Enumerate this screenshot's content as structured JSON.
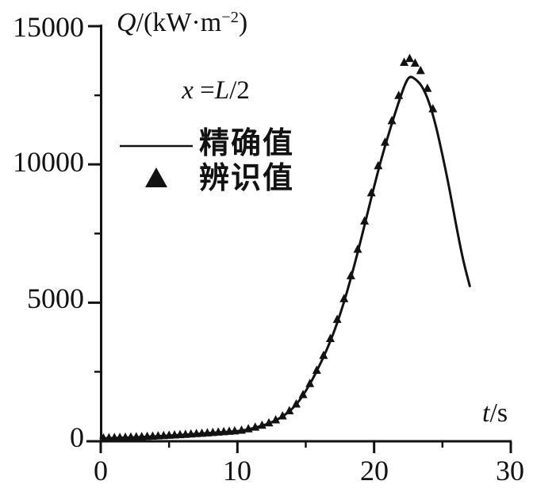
{
  "figure": {
    "background": "#ffffff",
    "ink": "#121212",
    "y_axis": {
      "title_var": "Q",
      "title_unit_pre": "/(kW·m",
      "title_unit_sup": "−2",
      "title_unit_post": ")",
      "tick_labels": [
        "0",
        "5000",
        "10000",
        "15000"
      ],
      "ticks": [
        0,
        5000,
        10000,
        15000
      ],
      "minor_ticks": [
        2500,
        7500,
        12500
      ],
      "range": [
        0,
        15000
      ]
    },
    "x_axis": {
      "title_var": "t",
      "title_unit": "/s",
      "tick_labels": [
        "0",
        "10",
        "20",
        "30"
      ],
      "ticks": [
        0,
        10,
        20,
        30
      ],
      "minor_ticks": [
        5,
        15,
        25
      ],
      "range": [
        0,
        30
      ]
    },
    "annotation": {
      "var1": "x",
      "eq": " =",
      "var2": "L",
      "rest": "/2"
    },
    "legend": [
      {
        "swatch": "solid-line",
        "label": "精确值"
      },
      {
        "swatch": "filled-triangle",
        "label": "辨识值"
      }
    ]
  },
  "chart_data": {
    "type": "line",
    "title": "",
    "xlabel": "t/s",
    "ylabel": "Q/(kW·m−2)",
    "annotation": "x =L/2",
    "xlim": [
      0,
      30
    ],
    "ylim": [
      0,
      15000
    ],
    "x_major_ticks": [
      0,
      10,
      20,
      30
    ],
    "x_minor_ticks": [
      5,
      15,
      25
    ],
    "y_major_ticks": [
      0,
      5000,
      10000,
      15000
    ],
    "y_minor_ticks": [
      2500,
      7500,
      12500
    ],
    "grid": false,
    "legend_position": "upper-left-inside",
    "series": [
      {
        "name": "精确值",
        "kind": "line",
        "color": "#121212",
        "points": [
          [
            0,
            90
          ],
          [
            1,
            105
          ],
          [
            2,
            120
          ],
          [
            3,
            140
          ],
          [
            4,
            165
          ],
          [
            5,
            190
          ],
          [
            6,
            220
          ],
          [
            7,
            250
          ],
          [
            8,
            285
          ],
          [
            9,
            318
          ],
          [
            10,
            350
          ],
          [
            10.5,
            390
          ],
          [
            11,
            440
          ],
          [
            11.5,
            505
          ],
          [
            12,
            580
          ],
          [
            12.5,
            670
          ],
          [
            13,
            790
          ],
          [
            13.5,
            950
          ],
          [
            14,
            1150
          ],
          [
            14.5,
            1430
          ],
          [
            15,
            1800
          ],
          [
            15.5,
            2230
          ],
          [
            16,
            2720
          ],
          [
            16.5,
            3250
          ],
          [
            17,
            3850
          ],
          [
            17.5,
            4550
          ],
          [
            18,
            5350
          ],
          [
            18.5,
            6250
          ],
          [
            19,
            7200
          ],
          [
            19.5,
            8200
          ],
          [
            20,
            9200
          ],
          [
            20.5,
            10150
          ],
          [
            21,
            11000
          ],
          [
            21.5,
            11800
          ],
          [
            22,
            12550
          ],
          [
            22.3,
            12950
          ],
          [
            22.6,
            13200
          ],
          [
            23,
            13100
          ],
          [
            23.5,
            12850
          ],
          [
            24,
            12300
          ],
          [
            24.5,
            11450
          ],
          [
            25,
            10350
          ],
          [
            25.5,
            9150
          ],
          [
            26,
            7800
          ],
          [
            26.5,
            6550
          ],
          [
            27,
            5600
          ]
        ]
      },
      {
        "name": "辨识值",
        "kind": "scatter",
        "marker": "filled-triangle",
        "color": "#121212",
        "points": [
          [
            0.2,
            93
          ],
          [
            0.6,
            99
          ],
          [
            1.0,
            106
          ],
          [
            1.4,
            113
          ],
          [
            1.8,
            120
          ],
          [
            2.2,
            127
          ],
          [
            2.6,
            134
          ],
          [
            3.0,
            141
          ],
          [
            3.4,
            149
          ],
          [
            3.8,
            158
          ],
          [
            4.2,
            168
          ],
          [
            4.6,
            178
          ],
          [
            5.0,
            189
          ],
          [
            5.4,
            200
          ],
          [
            5.8,
            212
          ],
          [
            6.2,
            224
          ],
          [
            6.6,
            237
          ],
          [
            7.0,
            250
          ],
          [
            7.4,
            263
          ],
          [
            7.8,
            276
          ],
          [
            8.2,
            290
          ],
          [
            8.6,
            304
          ],
          [
            9.0,
            318
          ],
          [
            9.4,
            332
          ],
          [
            9.8,
            347
          ],
          [
            10.3,
            372
          ],
          [
            10.8,
            425
          ],
          [
            11.3,
            483
          ],
          [
            11.8,
            552
          ],
          [
            12.3,
            638
          ],
          [
            12.8,
            748
          ],
          [
            13.3,
            890
          ],
          [
            13.8,
            1075
          ],
          [
            14.3,
            1320
          ],
          [
            14.8,
            1660
          ],
          [
            15.3,
            2060
          ],
          [
            15.8,
            2540
          ],
          [
            16.3,
            3080
          ],
          [
            16.8,
            3690
          ],
          [
            17.3,
            4380
          ],
          [
            17.8,
            5130
          ],
          [
            18.3,
            5960
          ],
          [
            18.8,
            6920
          ],
          [
            19.3,
            7940
          ],
          [
            19.8,
            8960
          ],
          [
            20.3,
            9940
          ],
          [
            20.8,
            10790
          ],
          [
            21.3,
            11570
          ],
          [
            21.8,
            12480
          ],
          [
            22.2,
            13680
          ],
          [
            22.6,
            13820
          ],
          [
            23.0,
            13650
          ],
          [
            23.4,
            13380
          ],
          [
            23.9,
            12740
          ],
          [
            24.3,
            12000
          ]
        ]
      }
    ]
  }
}
